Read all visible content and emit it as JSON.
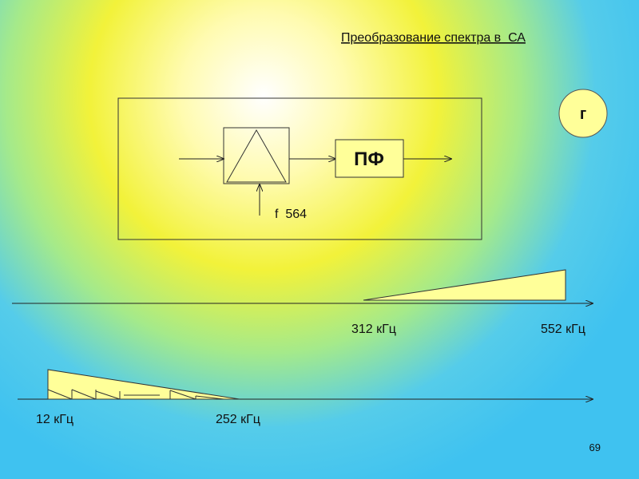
{
  "title": "Преобразование спектра в  СА",
  "badge": "г",
  "filter_label": "ПФ",
  "oscillator_label": "f  564",
  "upper_axis": {
    "start_label": "312 кГц",
    "end_label": "552 кГц"
  },
  "lower_axis": {
    "start_label": "12 кГц",
    "end_label": "252 кГц"
  },
  "page_number": "69"
}
